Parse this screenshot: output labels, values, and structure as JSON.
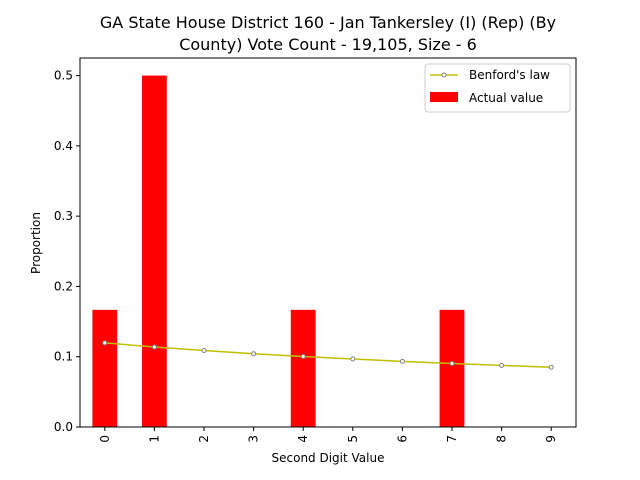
{
  "chart_data": {
    "type": "bar",
    "title_lines": [
      "GA State House District 160 - Jan Tankersley (I) (Rep) (By",
      "County) Vote Count - 19,105, Size - 6"
    ],
    "xlabel": "Second Digit Value",
    "ylabel": "Proportion",
    "categories": [
      "0",
      "1",
      "2",
      "3",
      "4",
      "5",
      "6",
      "7",
      "8",
      "9"
    ],
    "ylim": [
      0,
      0.525
    ],
    "yticks": [
      0.0,
      0.1,
      0.2,
      0.3,
      0.4,
      0.5
    ],
    "ytick_labels": [
      "0.0",
      "0.1",
      "0.2",
      "0.3",
      "0.4",
      "0.5"
    ],
    "legend_position": "top-right",
    "series": [
      {
        "name": "Benford's law",
        "kind": "line",
        "color": "#bfbf00",
        "marker_edge": "#808080",
        "values": [
          0.1197,
          0.1139,
          0.1088,
          0.1043,
          0.1003,
          0.0967,
          0.0934,
          0.0904,
          0.0876,
          0.085
        ]
      },
      {
        "name": "Actual value",
        "kind": "bar",
        "color": "#ff0000",
        "values": [
          0.1667,
          0.5,
          0,
          0,
          0.1667,
          0,
          0,
          0.1667,
          0,
          0
        ]
      }
    ]
  }
}
